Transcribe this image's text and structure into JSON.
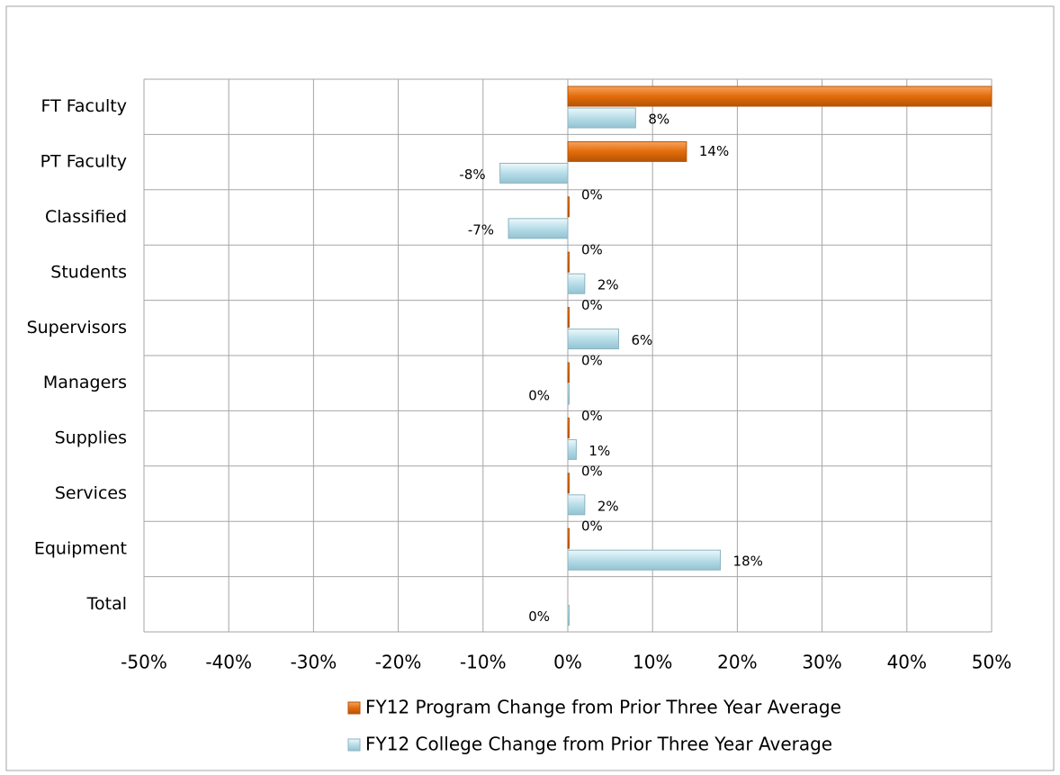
{
  "chart_data": {
    "type": "hbar",
    "categories": [
      "FT Faculty",
      "PT Faculty",
      "Classified",
      "Students",
      "Supervisors",
      "Managers",
      "Supplies",
      "Services",
      "Equipment",
      "Total"
    ],
    "series": [
      {
        "name": "FY12 Program Change from Prior Three Year Average",
        "color": "#e46c0a",
        "values": [
          50,
          14,
          0,
          0,
          0,
          0,
          0,
          0,
          0,
          null
        ],
        "value_labels": [
          null,
          "14%",
          "0%",
          "0%",
          "0%",
          "0%",
          "0%",
          "0%",
          "0%",
          null
        ]
      },
      {
        "name": "FY12 College Change from Prior Three Year Average",
        "color": "#b7dde8",
        "values": [
          8,
          -8,
          -7,
          2,
          6,
          0,
          1,
          2,
          18,
          0
        ],
        "value_labels": [
          "8%",
          "-8%",
          "-7%",
          "2%",
          "6%",
          "0%",
          "1%",
          "2%",
          "18%",
          "0%"
        ]
      }
    ],
    "xlim": [
      -50,
      50
    ],
    "xticks": [
      {
        "value": -50,
        "label": "-50%"
      },
      {
        "value": -40,
        "label": "-40%"
      },
      {
        "value": -30,
        "label": "-30%"
      },
      {
        "value": -20,
        "label": "-20%"
      },
      {
        "value": -10,
        "label": "-10%"
      },
      {
        "value": 0,
        "label": "0%"
      },
      {
        "value": 10,
        "label": "10%"
      },
      {
        "value": 20,
        "label": "20%"
      },
      {
        "value": 30,
        "label": "30%"
      },
      {
        "value": 40,
        "label": "40%"
      },
      {
        "value": 50,
        "label": "50%"
      }
    ],
    "grid": true,
    "legend": "bottom"
  }
}
